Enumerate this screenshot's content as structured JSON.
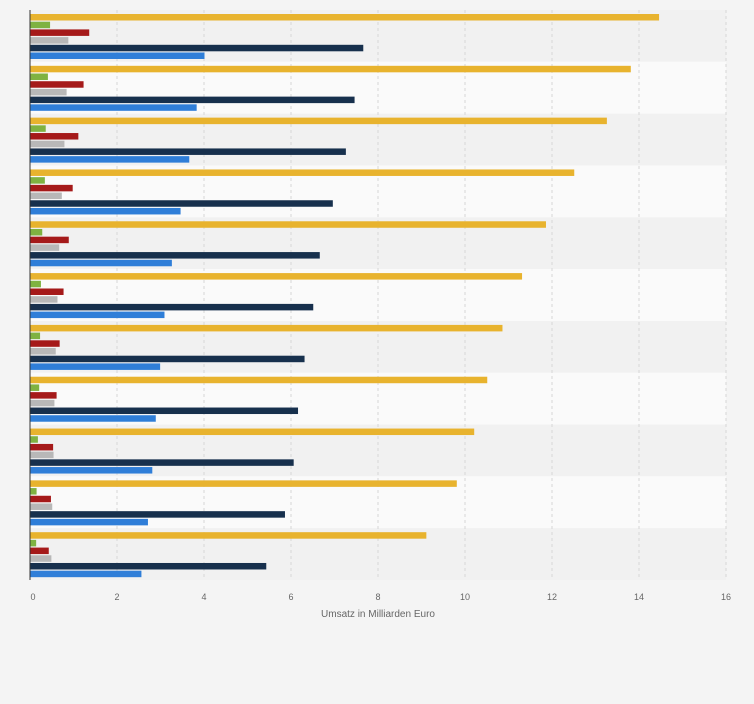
{
  "chart_data": {
    "type": "bar",
    "orientation": "horizontal",
    "title": "",
    "xlabel": "Umsatz in Milliarden Euro",
    "ylabel": "",
    "xlim": [
      0,
      16
    ],
    "x_ticks": [
      "0",
      "2",
      "4",
      "6",
      "8",
      "10",
      "12",
      "14",
      "16"
    ],
    "grid": true,
    "legend": "none",
    "categories": [
      "",
      "",
      "",
      "",
      "",
      "",
      "",
      "",
      "",
      "",
      ""
    ],
    "series": [
      {
        "color": "#e8b32e",
        "values": [
          14.45,
          13.8,
          13.25,
          12.5,
          11.85,
          11.3,
          10.85,
          10.5,
          10.2,
          9.8,
          9.1
        ]
      },
      {
        "color": "#7fb241",
        "values": [
          0.45,
          0.4,
          0.35,
          0.33,
          0.27,
          0.24,
          0.22,
          0.2,
          0.17,
          0.14,
          0.13
        ]
      },
      {
        "color": "#a51a1a",
        "values": [
          1.35,
          1.22,
          1.1,
          0.97,
          0.88,
          0.76,
          0.67,
          0.6,
          0.52,
          0.47,
          0.42
        ]
      },
      {
        "color": "#b8b8b8",
        "values": [
          0.87,
          0.83,
          0.78,
          0.72,
          0.66,
          0.62,
          0.58,
          0.55,
          0.53,
          0.5,
          0.48
        ]
      },
      {
        "color": "#17304d",
        "values": [
          7.65,
          7.45,
          7.25,
          6.95,
          6.65,
          6.5,
          6.3,
          6.15,
          6.05,
          5.85,
          5.42
        ]
      },
      {
        "color": "#2f7ed8",
        "values": [
          4.0,
          3.82,
          3.65,
          3.45,
          3.25,
          3.08,
          2.98,
          2.88,
          2.8,
          2.7,
          2.55
        ]
      }
    ]
  }
}
